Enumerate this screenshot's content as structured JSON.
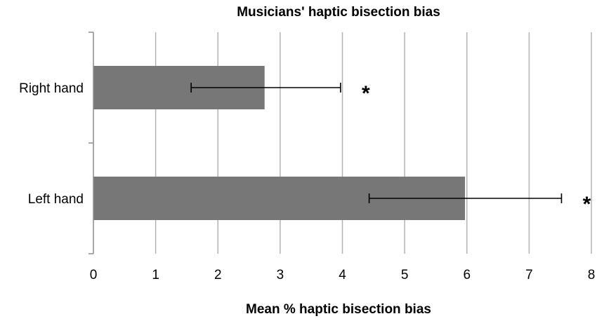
{
  "chart_data": {
    "type": "bar",
    "orientation": "horizontal",
    "title": "Musicians' haptic bisection bias",
    "xlabel": "Mean % haptic bisection bias",
    "ylabel": "",
    "xlim": [
      0,
      8
    ],
    "xticks": [
      "0",
      "1",
      "2",
      "3",
      "4",
      "5",
      "6",
      "7",
      "8"
    ],
    "grid": "vertical",
    "categories": [
      "Right hand",
      "Left hand"
    ],
    "values": [
      2.75,
      5.97
    ],
    "error_low": [
      1.57,
      4.43
    ],
    "error_high": [
      3.97,
      7.52
    ],
    "annotations": [
      "*",
      "*"
    ],
    "colors": {
      "bar": "#777777",
      "grid": "#b3b3b3",
      "axis": "#8c8c8c"
    }
  }
}
